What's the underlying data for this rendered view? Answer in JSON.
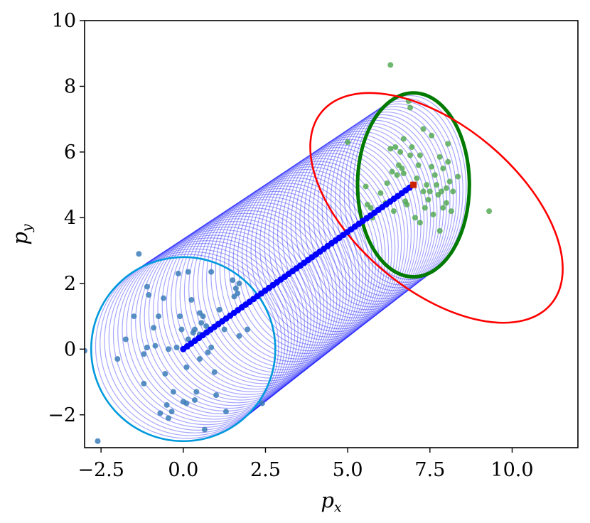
{
  "chart_data": {
    "type": "scatter",
    "xlabel": "p",
    "xlabel_subscript": "x",
    "ylabel": "p",
    "ylabel_subscript": "y",
    "xlim": [
      -3.0,
      12.0
    ],
    "ylim": [
      -3.0,
      10.0
    ],
    "x_ticks": [
      -2.5,
      0.0,
      2.5,
      5.0,
      7.5,
      10.0
    ],
    "x_tick_labels": [
      "−2.5",
      "0.0",
      "2.5",
      "5.0",
      "7.5",
      "10.0"
    ],
    "y_ticks": [
      -2,
      0,
      2,
      4,
      6,
      8,
      10
    ],
    "y_tick_labels": [
      "−2",
      "0",
      "2",
      "4",
      "6",
      "8",
      "10"
    ],
    "grid": false,
    "colors": {
      "start_points": "#3b7db8",
      "end_points": "#4ca64c",
      "trajectory": "#0000ff",
      "interpolated_circles": "#0000ff",
      "start_circle": "#0099dd",
      "end_ellipse": "#007a00",
      "outer_ellipse": "#ff0000",
      "end_marker": "#cc2200"
    },
    "start_circle": {
      "cx": 0.0,
      "cy": 0.0,
      "rx": 2.8,
      "ry": 2.8,
      "angle_deg": 0
    },
    "end_ellipse": {
      "cx": 7.0,
      "cy": 5.0,
      "rx": 1.7,
      "ry": 2.8,
      "angle_deg": 0
    },
    "outer_ellipse": {
      "cx": 7.7,
      "cy": 4.3,
      "rx": 4.55,
      "ry": 2.5,
      "angle_deg": -40
    },
    "interpolation_steps": 60,
    "trajectory": {
      "start": [
        0.0,
        0.0
      ],
      "end": [
        7.0,
        5.0
      ],
      "n_points": 60
    },
    "end_marker": [
      7.0,
      5.0
    ],
    "start_points": [
      [
        -3.0,
        -0.05
      ],
      [
        -2.6,
        -2.8
      ],
      [
        -2.0,
        -0.3
      ],
      [
        -1.75,
        0.3
      ],
      [
        -1.5,
        1.0
      ],
      [
        -1.35,
        2.9
      ],
      [
        -1.2,
        -0.15
      ],
      [
        -1.1,
        1.9
      ],
      [
        -1.05,
        1.65
      ],
      [
        -1.1,
        0.05
      ],
      [
        -1.2,
        -1.05
      ],
      [
        -0.9,
        0.65
      ],
      [
        -0.85,
        0.1
      ],
      [
        -0.75,
        1.0
      ],
      [
        -0.7,
        -1.95
      ],
      [
        -0.55,
        -0.75
      ],
      [
        -0.5,
        -1.7
      ],
      [
        -0.45,
        0.0
      ],
      [
        -0.45,
        -2.1
      ],
      [
        -0.35,
        -1.9
      ],
      [
        -0.3,
        -1.3
      ],
      [
        -0.2,
        0.05
      ],
      [
        -0.1,
        1.0
      ],
      [
        -0.15,
        2.3
      ],
      [
        -0.05,
        0.6
      ],
      [
        0.0,
        -1.6
      ],
      [
        0.1,
        -1.65
      ],
      [
        0.15,
        0.3
      ],
      [
        0.15,
        2.35
      ],
      [
        0.25,
        1.5
      ],
      [
        0.35,
        0.6
      ],
      [
        0.4,
        -1.3
      ],
      [
        0.35,
        -1.55
      ],
      [
        0.5,
        -0.3
      ],
      [
        0.5,
        1.1
      ],
      [
        0.5,
        0.45
      ],
      [
        0.55,
        0.8
      ],
      [
        0.6,
        1.0
      ],
      [
        0.65,
        -2.45
      ],
      [
        0.7,
        0.7
      ],
      [
        0.75,
        -0.1
      ],
      [
        0.85,
        2.35
      ],
      [
        0.85,
        0.05
      ],
      [
        0.95,
        -0.7
      ],
      [
        1.0,
        -1.4
      ],
      [
        1.25,
        0.6
      ],
      [
        1.3,
        -1.9
      ],
      [
        1.5,
        2.1
      ],
      [
        1.55,
        1.6
      ],
      [
        1.6,
        1.85
      ],
      [
        1.65,
        1.7
      ],
      [
        1.7,
        0.4
      ],
      [
        1.7,
        2.0
      ],
      [
        1.95,
        0.6
      ],
      [
        2.4,
        -1.65
      ],
      [
        0.3,
        0.5
      ],
      [
        -0.6,
        1.55
      ],
      [
        1.1,
        1.2
      ],
      [
        0.1,
        -0.55
      ]
    ],
    "end_points": [
      [
        5.0,
        6.3
      ],
      [
        5.55,
        4.95
      ],
      [
        5.6,
        4.4
      ],
      [
        5.7,
        4.3
      ],
      [
        5.75,
        4.0
      ],
      [
        6.0,
        4.75
      ],
      [
        6.15,
        4.45
      ],
      [
        6.2,
        5.05
      ],
      [
        6.3,
        8.65
      ],
      [
        6.3,
        6.1
      ],
      [
        6.35,
        5.4
      ],
      [
        6.4,
        4.2
      ],
      [
        6.45,
        6.15
      ],
      [
        6.5,
        5.3
      ],
      [
        6.55,
        5.6
      ],
      [
        6.6,
        6.0
      ],
      [
        6.65,
        5.5
      ],
      [
        6.7,
        6.4
      ],
      [
        6.7,
        5.35
      ],
      [
        6.75,
        4.5
      ],
      [
        6.8,
        4.4
      ],
      [
        6.85,
        7.55
      ],
      [
        6.9,
        7.35
      ],
      [
        6.9,
        5.9
      ],
      [
        6.95,
        6.15
      ],
      [
        7.05,
        4.0
      ],
      [
        7.1,
        5.2
      ],
      [
        7.15,
        5.6
      ],
      [
        7.2,
        3.85
      ],
      [
        7.3,
        4.8
      ],
      [
        7.3,
        6.7
      ],
      [
        7.35,
        4.3
      ],
      [
        7.4,
        5.0
      ],
      [
        7.45,
        4.55
      ],
      [
        7.5,
        4.8
      ],
      [
        7.55,
        6.5
      ],
      [
        7.55,
        5.55
      ],
      [
        7.6,
        4.1
      ],
      [
        7.65,
        5.3
      ],
      [
        7.7,
        5.0
      ],
      [
        7.75,
        4.7
      ],
      [
        7.8,
        5.85
      ],
      [
        7.8,
        3.6
      ],
      [
        7.85,
        4.8
      ],
      [
        7.9,
        4.3
      ],
      [
        7.9,
        5.5
      ],
      [
        8.0,
        4.9
      ],
      [
        8.0,
        4.45
      ],
      [
        8.05,
        6.25
      ],
      [
        8.1,
        5.1
      ],
      [
        8.05,
        5.7
      ],
      [
        8.35,
        5.25
      ],
      [
        8.2,
        4.8
      ],
      [
        9.3,
        4.2
      ],
      [
        7.2,
        5.9
      ],
      [
        8.15,
        4.2
      ]
    ]
  }
}
